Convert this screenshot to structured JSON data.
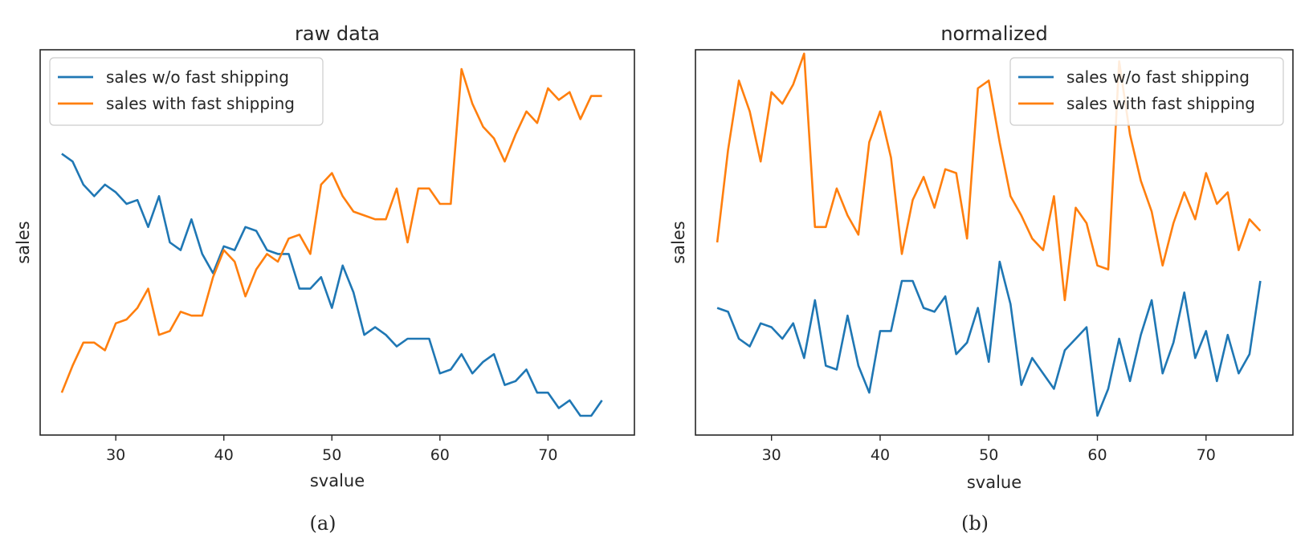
{
  "chart_data": [
    {
      "type": "line",
      "title": "raw data",
      "xlabel": "svalue",
      "ylabel": "sales",
      "caption": "(a)",
      "xlim": [
        23,
        78
      ],
      "ylim": [
        0,
        1
      ],
      "xticks": [
        "30",
        "40",
        "50",
        "60",
        "70"
      ],
      "yticks_visible": false,
      "grid": false,
      "legend_position": "top-left",
      "x": [
        25,
        26,
        27,
        28,
        29,
        30,
        31,
        32,
        33,
        34,
        35,
        36,
        37,
        38,
        39,
        40,
        41,
        42,
        43,
        44,
        45,
        46,
        47,
        48,
        49,
        50,
        51,
        52,
        53,
        54,
        55,
        56,
        57,
        58,
        59,
        60,
        61,
        62,
        63,
        64,
        65,
        66,
        67,
        68,
        69,
        70,
        71,
        72,
        73,
        74,
        75
      ],
      "series": [
        {
          "name": "sales w/o fast shipping",
          "color": "#1f77b4",
          "values": [
            0.73,
            0.71,
            0.65,
            0.62,
            0.65,
            0.63,
            0.6,
            0.61,
            0.54,
            0.62,
            0.5,
            0.48,
            0.56,
            0.47,
            0.42,
            0.49,
            0.48,
            0.54,
            0.53,
            0.48,
            0.47,
            0.47,
            0.38,
            0.38,
            0.41,
            0.33,
            0.44,
            0.37,
            0.26,
            0.28,
            0.26,
            0.23,
            0.25,
            0.25,
            0.25,
            0.16,
            0.17,
            0.21,
            0.16,
            0.19,
            0.21,
            0.13,
            0.14,
            0.17,
            0.11,
            0.11,
            0.07,
            0.09,
            0.05,
            0.05,
            0.09
          ]
        },
        {
          "name": "sales with fast shipping",
          "color": "#ff7f0e",
          "values": [
            0.11,
            0.18,
            0.24,
            0.24,
            0.22,
            0.29,
            0.3,
            0.33,
            0.38,
            0.26,
            0.27,
            0.32,
            0.31,
            0.31,
            0.41,
            0.48,
            0.45,
            0.36,
            0.43,
            0.47,
            0.45,
            0.51,
            0.52,
            0.47,
            0.65,
            0.68,
            0.62,
            0.58,
            0.57,
            0.56,
            0.56,
            0.64,
            0.5,
            0.64,
            0.64,
            0.6,
            0.6,
            0.95,
            0.86,
            0.8,
            0.77,
            0.71,
            0.78,
            0.84,
            0.81,
            0.9,
            0.87,
            0.89,
            0.82,
            0.88,
            0.88
          ]
        }
      ]
    },
    {
      "type": "line",
      "title": "normalized",
      "xlabel": "svalue",
      "ylabel": "sales",
      "caption": "(b)",
      "xlim": [
        23,
        78
      ],
      "ylim": [
        0,
        1
      ],
      "xticks": [
        "30",
        "40",
        "50",
        "60",
        "70"
      ],
      "yticks_visible": false,
      "grid": false,
      "legend_position": "top-right",
      "x": [
        25,
        26,
        27,
        28,
        29,
        30,
        31,
        32,
        33,
        34,
        35,
        36,
        37,
        38,
        39,
        40,
        41,
        42,
        43,
        44,
        45,
        46,
        47,
        48,
        49,
        50,
        51,
        52,
        53,
        54,
        55,
        56,
        57,
        58,
        59,
        60,
        61,
        62,
        63,
        64,
        65,
        66,
        67,
        68,
        69,
        70,
        71,
        72,
        73,
        74,
        75
      ],
      "series": [
        {
          "name": "sales w/o fast shipping",
          "color": "#1f77b4",
          "values": [
            0.33,
            0.32,
            0.25,
            0.23,
            0.29,
            0.28,
            0.25,
            0.29,
            0.2,
            0.35,
            0.18,
            0.17,
            0.31,
            0.18,
            0.11,
            0.27,
            0.27,
            0.4,
            0.4,
            0.33,
            0.32,
            0.36,
            0.21,
            0.24,
            0.33,
            0.19,
            0.45,
            0.34,
            0.13,
            0.2,
            0.16,
            0.12,
            0.22,
            0.25,
            0.28,
            0.05,
            0.12,
            0.25,
            0.14,
            0.26,
            0.35,
            0.16,
            0.24,
            0.37,
            0.2,
            0.27,
            0.14,
            0.26,
            0.16,
            0.21,
            0.4
          ]
        },
        {
          "name": "sales with fast shipping",
          "color": "#ff7f0e",
          "values": [
            0.5,
            0.74,
            0.92,
            0.84,
            0.71,
            0.89,
            0.86,
            0.91,
            0.99,
            0.54,
            0.54,
            0.64,
            0.57,
            0.52,
            0.76,
            0.84,
            0.72,
            0.47,
            0.61,
            0.67,
            0.59,
            0.69,
            0.68,
            0.51,
            0.9,
            0.92,
            0.76,
            0.62,
            0.57,
            0.51,
            0.48,
            0.62,
            0.35,
            0.59,
            0.55,
            0.44,
            0.43,
            0.97,
            0.78,
            0.66,
            0.58,
            0.44,
            0.55,
            0.63,
            0.56,
            0.68,
            0.6,
            0.63,
            0.48,
            0.56,
            0.53
          ]
        }
      ]
    }
  ]
}
